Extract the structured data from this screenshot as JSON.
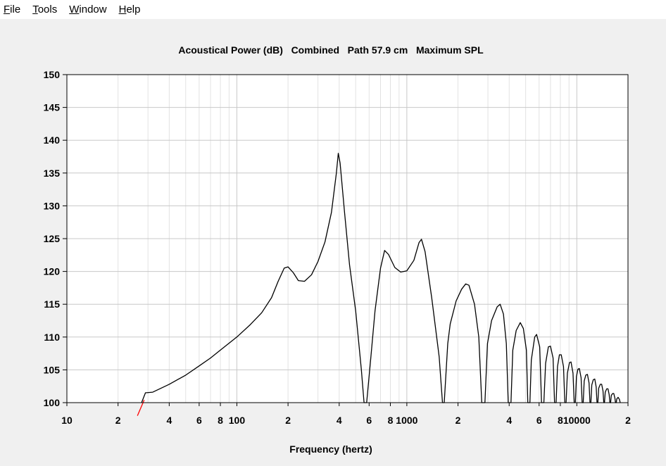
{
  "menu": {
    "items": [
      {
        "label": "File",
        "accel": "F",
        "rest": "ile"
      },
      {
        "label": "Tools",
        "accel": "T",
        "rest": "ools"
      },
      {
        "label": "Window",
        "accel": "W",
        "rest": "indow"
      },
      {
        "label": "Help",
        "accel": "H",
        "rest": "elp"
      }
    ]
  },
  "colors": {
    "background": "#f0f0f0",
    "plot_background": "#ffffff",
    "grid_major": "#c8c8c8",
    "grid_minor": "#e2e2e2",
    "curve": "#000000",
    "curve_below_range": "#ff0000"
  },
  "chart_data": {
    "type": "line",
    "title": "Acoustical Power (dB)   Combined   Path 57.9 cm   Maximum SPL",
    "xlabel": "Frequency (hertz)",
    "ylabel": "",
    "x_scale": "log",
    "xlim": [
      10,
      20000
    ],
    "ylim": [
      100,
      150
    ],
    "grid": true,
    "yticks": [
      100,
      105,
      110,
      115,
      120,
      125,
      130,
      135,
      140,
      145,
      150
    ],
    "xticks": [
      {
        "value": 10,
        "label": "10"
      },
      {
        "value": 20,
        "label": "2"
      },
      {
        "value": 40,
        "label": "4"
      },
      {
        "value": 60,
        "label": "6"
      },
      {
        "value": 80,
        "label": "8"
      },
      {
        "value": 100,
        "label": "100"
      },
      {
        "value": 200,
        "label": "2"
      },
      {
        "value": 400,
        "label": "4"
      },
      {
        "value": 600,
        "label": "6"
      },
      {
        "value": 800,
        "label": "8"
      },
      {
        "value": 1000,
        "label": "1000"
      },
      {
        "value": 2000,
        "label": "2"
      },
      {
        "value": 4000,
        "label": "4"
      },
      {
        "value": 6000,
        "label": "6"
      },
      {
        "value": 8000,
        "label": "8"
      },
      {
        "value": 10000,
        "label": "10000"
      },
      {
        "value": 20000,
        "label": "2"
      }
    ],
    "series": [
      {
        "points": [
          [
            27.5,
            100
          ],
          [
            29,
            101.5
          ],
          [
            32,
            101.6
          ],
          [
            40,
            102.8
          ],
          [
            50,
            104.2
          ],
          [
            60,
            105.6
          ],
          [
            70,
            106.8
          ],
          [
            80,
            108
          ],
          [
            100,
            110
          ],
          [
            120,
            111.9
          ],
          [
            140,
            113.7
          ],
          [
            160,
            116
          ],
          [
            175,
            118.5
          ],
          [
            190,
            120.5
          ],
          [
            200,
            120.7
          ],
          [
            215,
            119.8
          ],
          [
            230,
            118.6
          ],
          [
            250,
            118.5
          ],
          [
            275,
            119.5
          ],
          [
            300,
            121.5
          ],
          [
            330,
            124.5
          ],
          [
            360,
            129
          ],
          [
            385,
            135
          ],
          [
            395,
            138
          ],
          [
            405,
            136.5
          ],
          [
            430,
            129
          ],
          [
            460,
            121
          ],
          [
            500,
            114
          ],
          [
            540,
            105
          ],
          [
            560,
            100
          ],
          [
            580,
            100
          ],
          [
            610,
            106
          ],
          [
            650,
            114
          ],
          [
            700,
            120.5
          ],
          [
            740,
            123.2
          ],
          [
            780,
            122.6
          ],
          [
            850,
            120.6
          ],
          [
            920,
            119.9
          ],
          [
            1000,
            120.1
          ],
          [
            1100,
            121.7
          ],
          [
            1180,
            124.4
          ],
          [
            1220,
            124.9
          ],
          [
            1280,
            123
          ],
          [
            1400,
            116
          ],
          [
            1550,
            107
          ],
          [
            1620,
            100
          ],
          [
            1660,
            100
          ],
          [
            1740,
            109
          ],
          [
            1800,
            112
          ],
          [
            1950,
            115.5
          ],
          [
            2100,
            117.3
          ],
          [
            2220,
            118.1
          ],
          [
            2320,
            117.9
          ],
          [
            2500,
            115
          ],
          [
            2650,
            110
          ],
          [
            2760,
            100
          ],
          [
            2880,
            100
          ],
          [
            2980,
            109
          ],
          [
            3150,
            112.5
          ],
          [
            3400,
            114.6
          ],
          [
            3540,
            115
          ],
          [
            3700,
            113.5
          ],
          [
            3850,
            109
          ],
          [
            3950,
            100
          ],
          [
            4100,
            100
          ],
          [
            4200,
            108
          ],
          [
            4400,
            111
          ],
          [
            4650,
            112.2
          ],
          [
            4850,
            111.3
          ],
          [
            5050,
            108
          ],
          [
            5150,
            100
          ],
          [
            5300,
            100
          ],
          [
            5400,
            106.5
          ],
          [
            5650,
            110
          ],
          [
            5800,
            110.4
          ],
          [
            6050,
            108.5
          ],
          [
            6200,
            100
          ],
          [
            6400,
            100
          ],
          [
            6550,
            106
          ],
          [
            6800,
            108.5
          ],
          [
            7000,
            108.6
          ],
          [
            7250,
            106.8
          ],
          [
            7400,
            100
          ],
          [
            7550,
            100
          ],
          [
            7700,
            105.5
          ],
          [
            7900,
            107.3
          ],
          [
            8100,
            107.3
          ],
          [
            8350,
            105.5
          ],
          [
            8500,
            100
          ],
          [
            8650,
            100
          ],
          [
            8800,
            104.5
          ],
          [
            9050,
            106.1
          ],
          [
            9250,
            106.2
          ],
          [
            9500,
            104.5
          ],
          [
            9650,
            100
          ],
          [
            9800,
            100
          ],
          [
            9950,
            104
          ],
          [
            10150,
            105.1
          ],
          [
            10350,
            105.2
          ],
          [
            10600,
            103.8
          ],
          [
            10750,
            100
          ],
          [
            10900,
            100
          ],
          [
            11050,
            103.3
          ],
          [
            11300,
            104.2
          ],
          [
            11550,
            104.3
          ],
          [
            11800,
            103
          ],
          [
            11950,
            100
          ],
          [
            12100,
            100
          ],
          [
            12250,
            102.7
          ],
          [
            12500,
            103.5
          ],
          [
            12750,
            103.6
          ],
          [
            13000,
            102.4
          ],
          [
            13150,
            100
          ],
          [
            13300,
            100
          ],
          [
            13450,
            102.2
          ],
          [
            13750,
            102.8
          ],
          [
            14000,
            102.8
          ],
          [
            14250,
            101.8
          ],
          [
            14400,
            100
          ],
          [
            14550,
            100
          ],
          [
            14700,
            101.6
          ],
          [
            15000,
            102.1
          ],
          [
            15250,
            102.1
          ],
          [
            15500,
            101.2
          ],
          [
            15650,
            100
          ],
          [
            15800,
            100
          ],
          [
            15950,
            101.1
          ],
          [
            16250,
            101.4
          ],
          [
            16500,
            101.4
          ],
          [
            16750,
            100.7
          ],
          [
            16900,
            100
          ],
          [
            17050,
            100
          ],
          [
            17200,
            100.6
          ],
          [
            17500,
            100.8
          ],
          [
            17800,
            100.5
          ],
          [
            18000,
            100
          ]
        ]
      },
      {
        "points": [
          [
            26,
            98
          ],
          [
            28.5,
            100.4
          ]
        ]
      }
    ]
  }
}
